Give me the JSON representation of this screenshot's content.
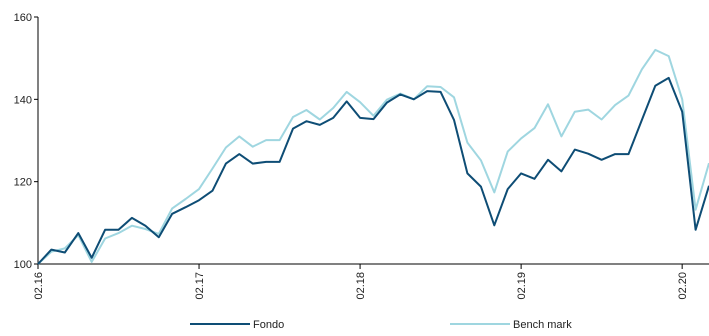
{
  "chart_data": {
    "type": "line",
    "title": "",
    "xlabel": "",
    "ylabel": "",
    "ylim": [
      100,
      160
    ],
    "y_ticks": [
      100,
      120,
      140,
      160
    ],
    "x_ticks": [
      {
        "label": "02.16",
        "index": 0
      },
      {
        "label": "02.17",
        "index": 12
      },
      {
        "label": "02.18",
        "index": 24
      },
      {
        "label": "02.19",
        "index": 36
      },
      {
        "label": "02.20",
        "index": 48
      }
    ],
    "x_range": [
      0,
      50
    ],
    "grid": false,
    "legend_position": "bottom",
    "series": [
      {
        "name": "Fondo",
        "color": "#0e4d75",
        "values": [
          100,
          103.5,
          102.8,
          107.5,
          101.5,
          108.3,
          108.3,
          111.2,
          109.3,
          106.5,
          112.2,
          113.8,
          115.5,
          117.8,
          124.4,
          126.7,
          124.4,
          124.8,
          124.8,
          132.9,
          134.7,
          133.8,
          135.5,
          139.5,
          135.5,
          135.2,
          139.2,
          141.2,
          140.0,
          142.0,
          141.8,
          135.0,
          122.0,
          118.8,
          109.4,
          118.2,
          122.0,
          120.7,
          125.3,
          122.5,
          127.8,
          126.8,
          125.3,
          126.7,
          126.7,
          135.0,
          143.3,
          145.2,
          137.0,
          108.3,
          119.0
        ]
      },
      {
        "name": "Bench mark",
        "color": "#9fd6e0",
        "values": [
          100,
          103.0,
          103.8,
          107.0,
          100.5,
          106.2,
          107.5,
          109.3,
          108.5,
          107.3,
          113.5,
          115.8,
          118.2,
          123.2,
          128.3,
          131.0,
          128.5,
          130.1,
          130.1,
          135.7,
          137.4,
          135.1,
          137.9,
          141.8,
          139.3,
          136.0,
          139.9,
          141.4,
          140.0,
          143.2,
          143.0,
          140.5,
          129.5,
          125.2,
          117.4,
          127.3,
          130.5,
          133.0,
          138.8,
          131.0,
          137.0,
          137.5,
          135.1,
          138.6,
          140.9,
          147.3,
          152.0,
          150.5,
          140.0,
          113.2,
          124.5
        ]
      }
    ]
  }
}
